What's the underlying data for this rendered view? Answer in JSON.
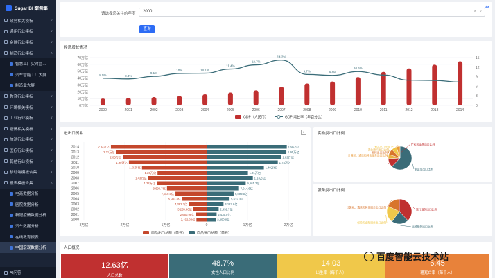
{
  "app": {
    "title": "Sugar BI 案例集",
    "ai_label": "AI问答"
  },
  "sidebar": {
    "items": [
      {
        "label": "政务相关模板",
        "level": 0,
        "caret": "∨"
      },
      {
        "label": "通用行业模板",
        "level": 0,
        "caret": "∨"
      },
      {
        "label": "金融行业模板",
        "level": 0,
        "caret": "∨"
      },
      {
        "label": "制造行业模板",
        "level": 0,
        "caret": "∧"
      },
      {
        "label": "智慧工厂实时监…",
        "level": 1
      },
      {
        "label": "汽车智能工厂大屏",
        "level": 1
      },
      {
        "label": "制造业大屏",
        "level": 1
      },
      {
        "label": "教育行业模板",
        "level": 0,
        "caret": "∨"
      },
      {
        "label": "环境相关模板",
        "level": 0,
        "caret": "∨"
      },
      {
        "label": "工业行业模板",
        "level": 0,
        "caret": "∨"
      },
      {
        "label": "疫情相关模板",
        "level": 0,
        "caret": "∨"
      },
      {
        "label": "旅游行业模板",
        "level": 0,
        "caret": "∨"
      },
      {
        "label": "医疗行业模板",
        "level": 0,
        "caret": "∨"
      },
      {
        "label": "其他行业模板",
        "level": 0,
        "caret": "∨"
      },
      {
        "label": "移动端模板合集",
        "level": 0,
        "caret": "∨"
      },
      {
        "label": "报表模板合集",
        "level": 0,
        "caret": "∧"
      },
      {
        "label": "电商数据分析",
        "level": 1
      },
      {
        "label": "医院数据分析",
        "level": 1
      },
      {
        "label": "新冠疫情数据分析",
        "level": 1
      },
      {
        "label": "汽车数据分析",
        "level": 1
      },
      {
        "label": "在线教育报表",
        "level": 1
      },
      {
        "label": "中国宏观数据分析",
        "level": 1,
        "active": true
      }
    ]
  },
  "filter": {
    "label": "请选择您关注的年度",
    "value": "2000",
    "clear": "×",
    "arrow": "∨",
    "button": "查询",
    "collapse": "≫"
  },
  "gdp": {
    "title": "经济增长情况",
    "years": [
      "2000",
      "2001",
      "2002",
      "2003",
      "2004",
      "2005",
      "2006",
      "2007",
      "2008",
      "2009",
      "2010",
      "2011",
      "2012",
      "2013",
      "2014"
    ],
    "y_left_ticks": [
      "0万亿",
      "10万亿",
      "20万亿",
      "30万亿",
      "40万亿",
      "50万亿",
      "60万亿",
      "70万亿"
    ],
    "y_right_ticks": [
      "0",
      "3",
      "6",
      "9",
      "12",
      "15"
    ],
    "gdp_values": [
      10.03,
      11.09,
      12.17,
      13.74,
      16.18,
      18.73,
      21.94,
      27.02,
      31.95,
      34.91,
      41.3,
      48.93,
      54.04,
      59.52,
      64.4
    ],
    "growth_values": [
      8.5,
      8.3,
      9.1,
      10,
      10.1,
      11.4,
      12.7,
      14.2,
      9.7,
      9.4,
      10.6,
      9.5,
      7.9,
      7.8,
      7.3
    ],
    "growth_labels": [
      "8.5%",
      "8.3%",
      "9.1%",
      "10%",
      "10.1%",
      "11.4%",
      "12.7%",
      "14.2%",
      "9.7%",
      "9.4%",
      "10.6%",
      "",
      "",
      "",
      ""
    ],
    "legend_gdp": "GDP（人民币）",
    "legend_growth": "GDP 增长率（年百分比）",
    "colors": {
      "bar": "#c03030",
      "line": "#3a6c78"
    }
  },
  "trade": {
    "title": "进出口贸易",
    "years": [
      "2014",
      "2013",
      "2012",
      "2011",
      "2010",
      "2009",
      "2008",
      "2007",
      "2006",
      "2005",
      "2004",
      "2003",
      "2002",
      "2001",
      "2000"
    ],
    "export_labels": [
      "2.34万亿",
      "2.21万亿",
      "2.05万亿",
      "1.90万亿",
      "1.58万亿",
      "1.20万亿",
      "1.43万亿",
      "1.22万亿",
      "9,690.7亿",
      "7,619.5亿",
      "5,933.3亿",
      "4,382.3亿",
      "3,255.96亿",
      "2,660.98亿",
      "2,492.03亿"
    ],
    "import_labels": [
      "1.96万亿",
      "1.95万亿",
      "1.82万亿",
      "1.74万亿",
      "1.40万亿",
      "1.01万亿",
      "1.13万亿",
      "9,561.2亿",
      "7,914.6亿",
      "6,599.5亿",
      "5,612.3亿",
      "4,127.6亿",
      "2,951.7亿",
      "2,435.5亿",
      "2,250.9亿"
    ],
    "exports": [
      2.34,
      2.21,
      2.05,
      1.9,
      1.58,
      1.2,
      1.43,
      1.22,
      0.969,
      0.762,
      0.593,
      0.438,
      0.326,
      0.266,
      0.249
    ],
    "imports": [
      1.96,
      1.95,
      1.82,
      1.74,
      1.4,
      1.01,
      1.13,
      0.956,
      0.791,
      0.66,
      0.561,
      0.413,
      0.295,
      0.244,
      0.225
    ],
    "x_ticks": [
      "3万亿",
      "2万亿",
      "1万亿",
      "0",
      "1万亿",
      "2万亿"
    ],
    "legend_export": "商品出口总额（美元）",
    "legend_import": "商品进口总额（美元）",
    "dropdown": "∨",
    "colors": {
      "export": "#c4472c",
      "import": "#3a6c78"
    }
  },
  "goods_pie": {
    "title": "实物类出口比例",
    "slices": [
      {
        "label": "制造业出口比例",
        "value": 62,
        "color": "#3a6c78"
      },
      {
        "label": "矿石和金属出口比例",
        "value": 12,
        "color": "#c03030"
      },
      {
        "label": "农业原料出口比例",
        "value": 6,
        "color": "#e8b040"
      },
      {
        "label": "燃料出口比例",
        "value": 8,
        "color": "#d8742c"
      },
      {
        "label": "食品出口比例",
        "value": 7,
        "color": "#f0c84a"
      },
      {
        "label": "计算机、通信和其他服务出口比例",
        "value": 5,
        "color": "#e89a3a"
      }
    ]
  },
  "service_pie": {
    "title": "服务类出口比例",
    "slices": [
      {
        "label": "旅行服务出口比例",
        "value": 38,
        "color": "#c03030"
      },
      {
        "label": "运输服务出口比例",
        "value": 22,
        "color": "#3a6c78"
      },
      {
        "label": "保险和金融服务出口比例",
        "value": 22,
        "color": "#f0c84a"
      },
      {
        "label": "计算机、通信和其他服务出口比例",
        "value": 18,
        "color": "#d8742c"
      }
    ]
  },
  "population": {
    "title": "人口概况",
    "kpis": [
      {
        "value": "12.63亿",
        "label": "人口总数",
        "color": "#c03030"
      },
      {
        "value": "48.7%",
        "label": "女性人口比例",
        "color": "#3a6c78"
      },
      {
        "value": "14.03",
        "label": "出生率（每千人）",
        "color": "#f0c84a"
      },
      {
        "value": "6.45",
        "label": "粗死亡率（每千人）",
        "color": "#e8823a"
      }
    ]
  },
  "watermark": "百度智能云技术站"
}
